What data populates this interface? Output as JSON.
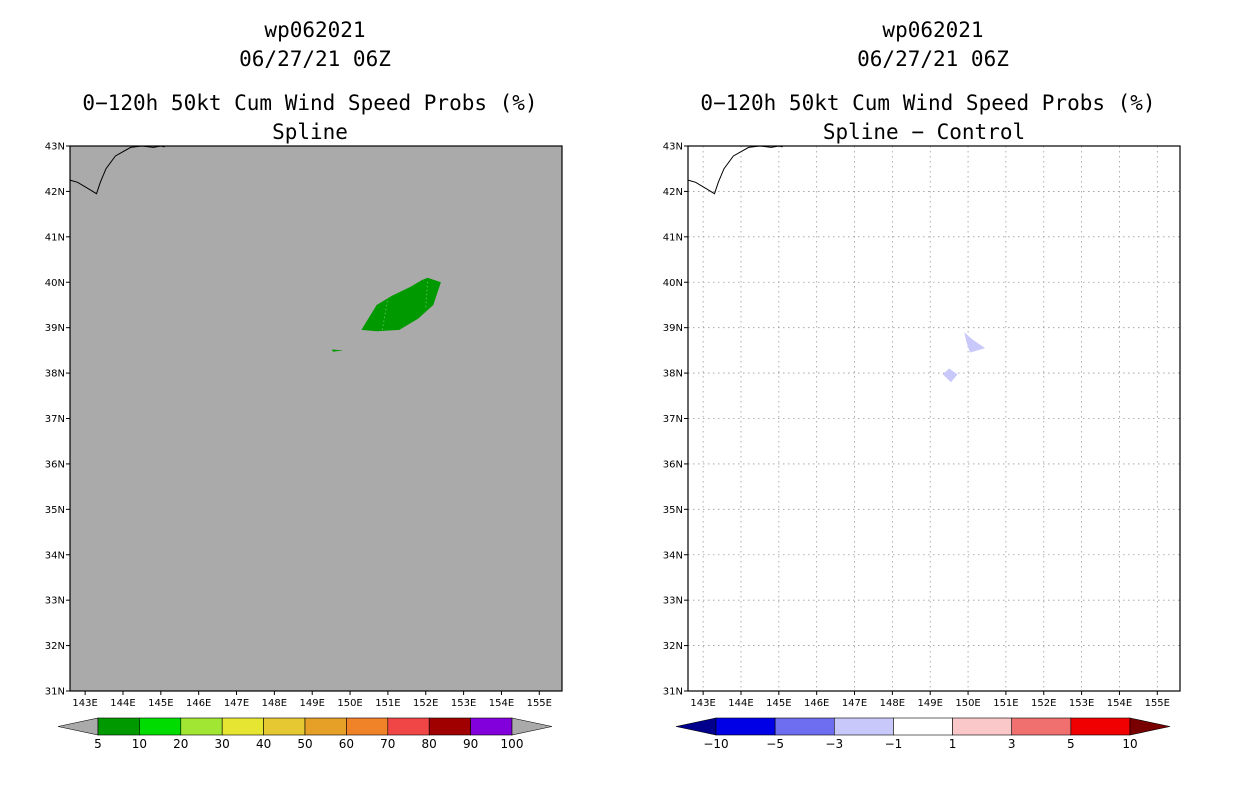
{
  "chart_data": [
    {
      "type": "heatmap",
      "title": [
        "wp062021",
        "06/27/21 06Z",
        "0−120h 50kt Cum Wind Speed Probs (%)",
        "Spline"
      ],
      "xlabel": "",
      "ylabel": "",
      "xlim": [
        142.6,
        155.6
      ],
      "ylim": [
        31,
        43
      ],
      "x_ticks": [
        143,
        144,
        145,
        146,
        147,
        148,
        149,
        150,
        151,
        152,
        153,
        154,
        155
      ],
      "x_tick_labels": [
        "143E",
        "144E",
        "145E",
        "146E",
        "147E",
        "148E",
        "149E",
        "150E",
        "151E",
        "152E",
        "153E",
        "154E",
        "155E"
      ],
      "y_ticks": [
        31,
        32,
        33,
        34,
        35,
        36,
        37,
        38,
        39,
        40,
        41,
        42,
        43
      ],
      "y_tick_labels": [
        "31N",
        "32N",
        "33N",
        "34N",
        "35N",
        "36N",
        "37N",
        "38N",
        "39N",
        "40N",
        "41N",
        "42N",
        "43N"
      ],
      "grid": false,
      "background_color": "#aaaaaa",
      "colorbar": {
        "levels": [
          "5",
          "10",
          "20",
          "30",
          "40",
          "50",
          "60",
          "70",
          "80",
          "90",
          "100"
        ],
        "colors": [
          "#009a00",
          "#00dc00",
          "#a0e632",
          "#e6e632",
          "#e6c832",
          "#e6a028",
          "#f08228",
          "#f04646",
          "#a00000",
          "#8200dc"
        ],
        "low_color": "#aaaaaa",
        "high_color": "#aaaaaa"
      },
      "regions": [
        {
          "label": "5-10%",
          "color": "#009a00",
          "polygon": [
            [
              150.3,
              38.95
            ],
            [
              150.7,
              39.5
            ],
            [
              151.1,
              39.7
            ],
            [
              151.6,
              39.9
            ],
            [
              151.9,
              40.05
            ],
            [
              152.05,
              40.1
            ],
            [
              152.4,
              40.0
            ],
            [
              152.2,
              39.5
            ],
            [
              151.8,
              39.2
            ],
            [
              151.3,
              38.95
            ],
            [
              150.7,
              38.92
            ]
          ]
        },
        {
          "label": "5-10%",
          "color": "#009a00",
          "polygon": [
            [
              149.52,
              38.52
            ],
            [
              149.82,
              38.5
            ],
            [
              149.55,
              38.47
            ]
          ]
        }
      ],
      "coastline": [
        [
          142.6,
          42.25
        ],
        [
          142.8,
          42.2
        ],
        [
          143.1,
          42.05
        ],
        [
          143.3,
          41.95
        ],
        [
          143.4,
          42.2
        ],
        [
          143.55,
          42.5
        ],
        [
          143.8,
          42.78
        ],
        [
          144.2,
          42.97
        ],
        [
          144.5,
          43.0
        ],
        [
          144.8,
          42.97
        ],
        [
          145.0,
          43.0
        ],
        [
          145.1,
          42.98
        ]
      ]
    },
    {
      "type": "heatmap",
      "title": [
        "wp062021",
        "06/27/21 06Z",
        "0−120h 50kt Cum Wind Speed Probs (%)",
        "Spline − Control"
      ],
      "xlabel": "",
      "ylabel": "",
      "xlim": [
        142.6,
        155.6
      ],
      "ylim": [
        31,
        43
      ],
      "x_ticks": [
        143,
        144,
        145,
        146,
        147,
        148,
        149,
        150,
        151,
        152,
        153,
        154,
        155
      ],
      "x_tick_labels": [
        "143E",
        "144E",
        "145E",
        "146E",
        "147E",
        "148E",
        "149E",
        "150E",
        "151E",
        "152E",
        "153E",
        "154E",
        "155E"
      ],
      "y_ticks": [
        31,
        32,
        33,
        34,
        35,
        36,
        37,
        38,
        39,
        40,
        41,
        42,
        43
      ],
      "y_tick_labels": [
        "31N",
        "32N",
        "33N",
        "34N",
        "35N",
        "36N",
        "37N",
        "38N",
        "39N",
        "40N",
        "41N",
        "42N",
        "43N"
      ],
      "grid": true,
      "background_color": "#ffffff",
      "colorbar": {
        "levels": [
          "−10",
          "−5",
          "−3",
          "−1",
          "1",
          "3",
          "5",
          "10"
        ],
        "colors": [
          "#0000e6",
          "#6e6ef0",
          "#c8c8fa",
          "#ffffff",
          "#fac8c8",
          "#f07070",
          "#f00000"
        ],
        "low_color": "#00008c",
        "high_color": "#780000"
      },
      "regions": [
        {
          "label": "-3 to -1",
          "color": "#c8c8fa",
          "polygon": [
            [
              149.9,
              38.9
            ],
            [
              150.1,
              38.75
            ],
            [
              150.45,
              38.55
            ],
            [
              150.05,
              38.45
            ],
            [
              149.95,
              38.7
            ]
          ]
        },
        {
          "label": "-3 to -1",
          "color": "#c8c8fa",
          "polygon": [
            [
              149.5,
              38.1
            ],
            [
              149.72,
              37.97
            ],
            [
              149.55,
              37.8
            ],
            [
              149.33,
              37.97
            ]
          ]
        }
      ],
      "coastline": [
        [
          142.6,
          42.25
        ],
        [
          142.8,
          42.2
        ],
        [
          143.1,
          42.05
        ],
        [
          143.3,
          41.95
        ],
        [
          143.4,
          42.2
        ],
        [
          143.55,
          42.5
        ],
        [
          143.8,
          42.78
        ],
        [
          144.2,
          42.97
        ],
        [
          144.5,
          43.0
        ],
        [
          144.8,
          42.97
        ],
        [
          145.0,
          43.0
        ],
        [
          145.1,
          42.98
        ]
      ]
    }
  ]
}
